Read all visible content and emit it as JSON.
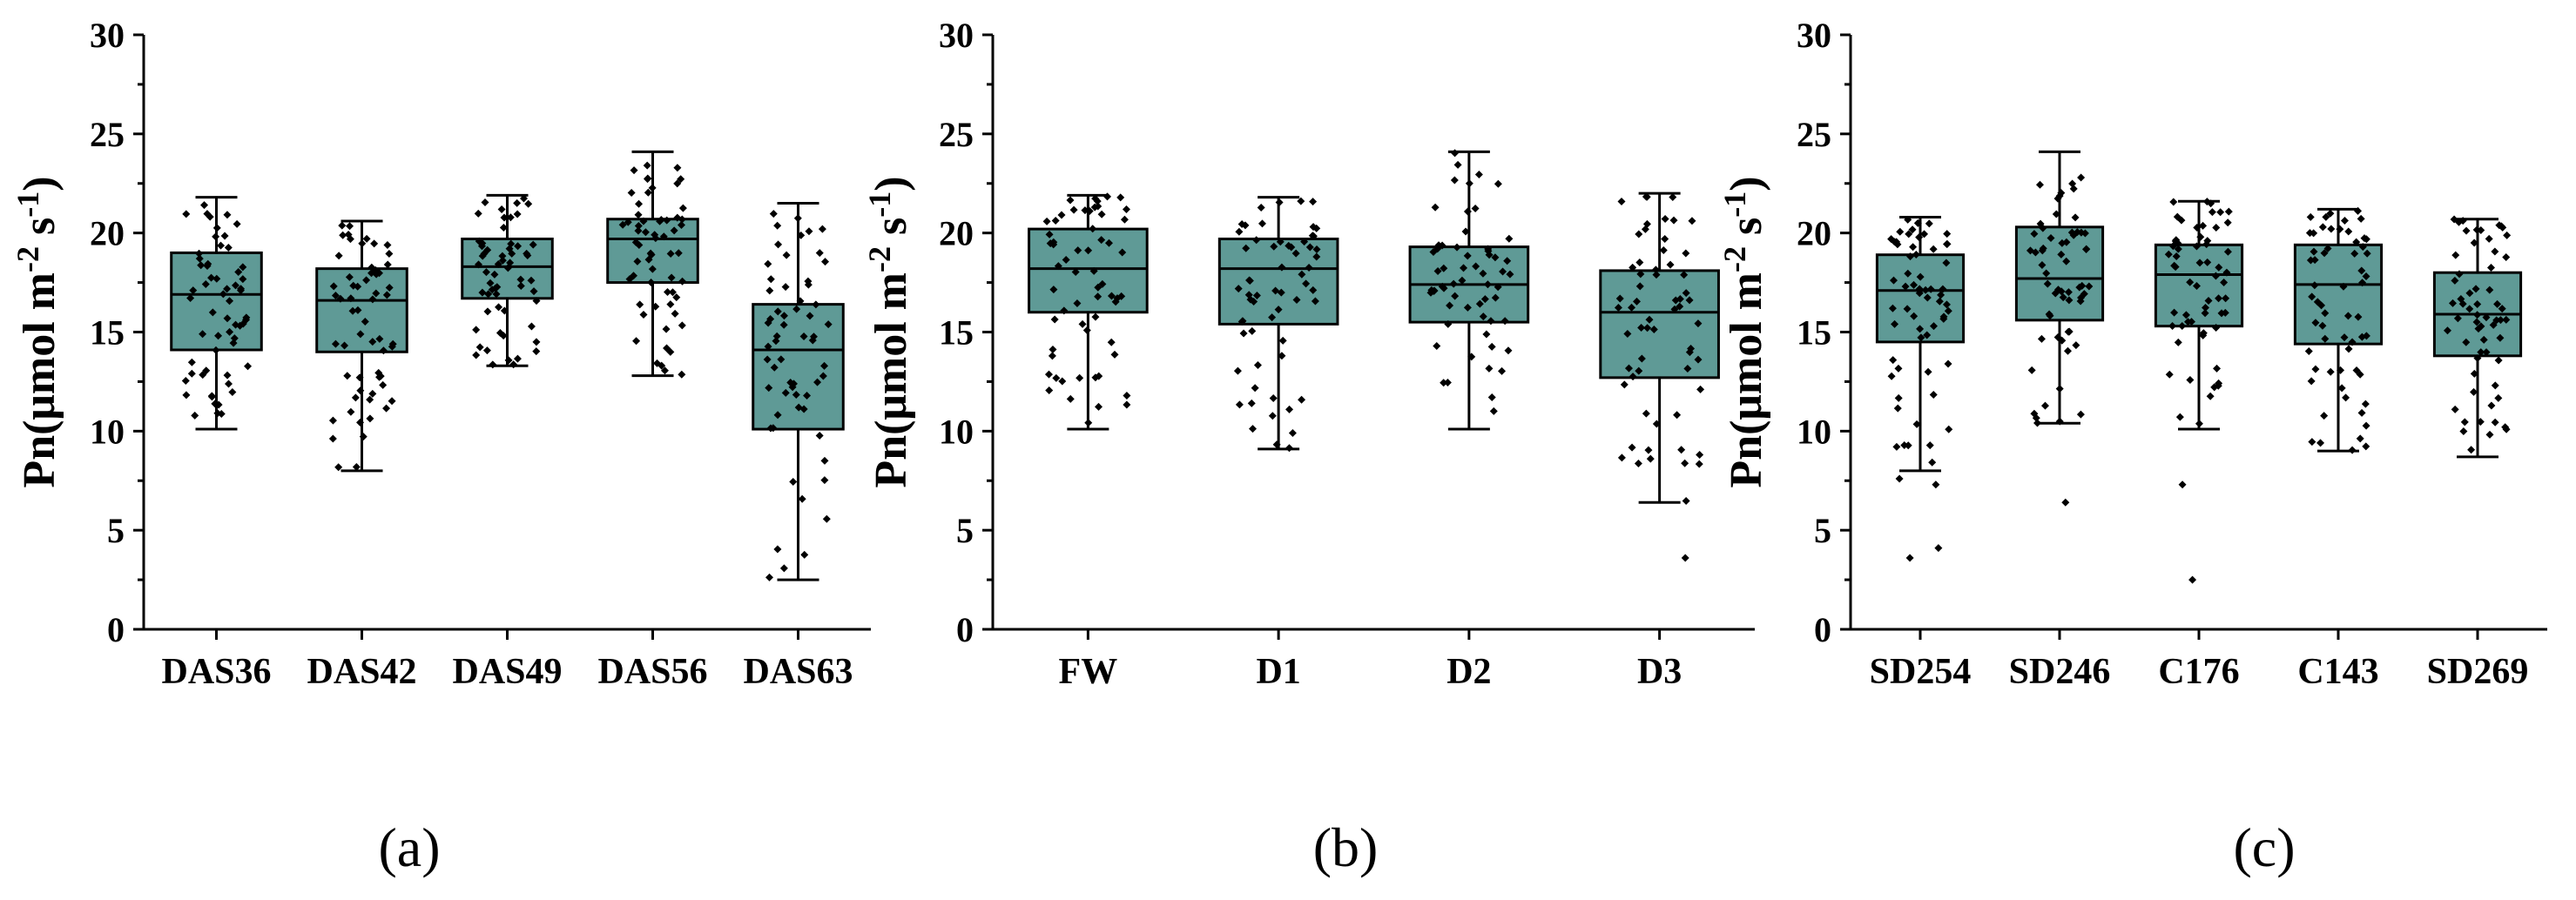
{
  "chart_data": [
    {
      "panel": "a",
      "panel_label": "(a)",
      "type": "box",
      "ylabel": "Pn(μmol m-2 s-1)",
      "ylim": [
        0,
        30
      ],
      "yticks": [
        0,
        5,
        10,
        15,
        20,
        25,
        30
      ],
      "categories": [
        "DAS36",
        "DAS42",
        "DAS49",
        "DAS56",
        "DAS63"
      ],
      "boxes": [
        {
          "min": 10.1,
          "q1": 14.1,
          "median": 16.9,
          "q3": 19.0,
          "max": 21.8
        },
        {
          "min": 8.0,
          "q1": 14.0,
          "median": 16.6,
          "q3": 18.2,
          "max": 20.6
        },
        {
          "min": 13.3,
          "q1": 16.7,
          "median": 18.3,
          "q3": 19.7,
          "max": 21.9
        },
        {
          "min": 12.8,
          "q1": 17.5,
          "median": 19.7,
          "q3": 20.7,
          "max": 24.1
        },
        {
          "min": 2.5,
          "q1": 10.1,
          "median": 14.1,
          "q3": 16.4,
          "max": 21.5
        }
      ]
    },
    {
      "panel": "b",
      "panel_label": "(b)",
      "type": "box",
      "ylabel": "Pn(μmol m-2 s-1)",
      "ylim": [
        0,
        30
      ],
      "yticks": [
        0,
        5,
        10,
        15,
        20,
        25,
        30
      ],
      "categories": [
        "FW",
        "D1",
        "D2",
        "D3"
      ],
      "boxes": [
        {
          "min": 10.1,
          "q1": 16.0,
          "median": 18.2,
          "q3": 20.2,
          "max": 21.9
        },
        {
          "min": 9.1,
          "q1": 15.4,
          "median": 18.2,
          "q3": 19.7,
          "max": 21.8
        },
        {
          "min": 10.1,
          "q1": 15.5,
          "median": 17.4,
          "q3": 19.3,
          "max": 24.1
        },
        {
          "min": 6.4,
          "q1": 12.7,
          "median": 16.0,
          "q3": 18.1,
          "max": 22.0
        }
      ],
      "outliers": [
        [],
        [],
        [],
        [
          3.6
        ]
      ]
    },
    {
      "panel": "c",
      "panel_label": "(c)",
      "type": "box",
      "ylabel": "Pn(μmol m-2 s-1)",
      "ylim": [
        0,
        30
      ],
      "yticks": [
        0,
        5,
        10,
        15,
        20,
        25,
        30
      ],
      "categories": [
        "SD254",
        "SD246",
        "C176",
        "C143",
        "SD269"
      ],
      "boxes": [
        {
          "min": 8.0,
          "q1": 14.5,
          "median": 17.1,
          "q3": 18.9,
          "max": 20.8
        },
        {
          "min": 10.4,
          "q1": 15.6,
          "median": 17.7,
          "q3": 20.3,
          "max": 24.1
        },
        {
          "min": 10.1,
          "q1": 15.3,
          "median": 17.9,
          "q3": 19.4,
          "max": 21.6
        },
        {
          "min": 9.0,
          "q1": 14.4,
          "median": 17.4,
          "q3": 19.4,
          "max": 21.2
        },
        {
          "min": 8.7,
          "q1": 13.8,
          "median": 15.9,
          "q3": 18.0,
          "max": 20.7
        }
      ],
      "outliers": [
        [
          3.6,
          4.1,
          7.3,
          7.6
        ],
        [
          6.4
        ],
        [
          2.5,
          7.3
        ],
        [],
        []
      ]
    }
  ],
  "style": {
    "box_fill": "#5f9a96",
    "line_color": "#000000",
    "point_color": "#000000"
  }
}
